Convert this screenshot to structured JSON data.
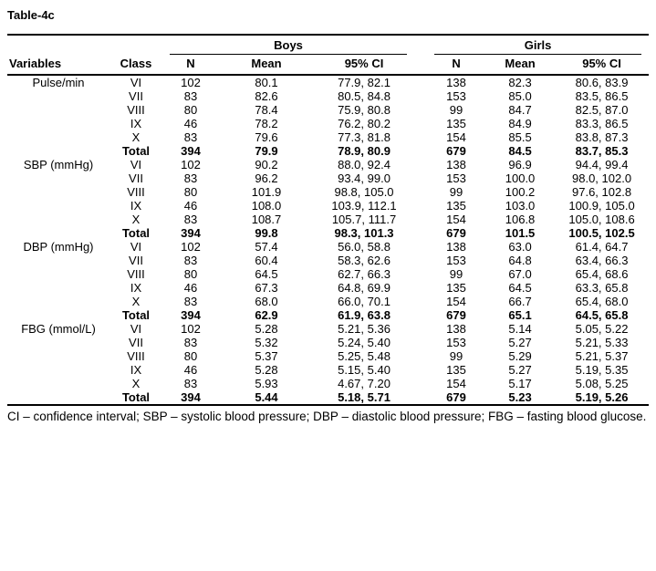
{
  "title": "Table-4c",
  "table": {
    "group_headers": {
      "boys": "Boys",
      "girls": "Girls"
    },
    "col_headers": {
      "variables": "Variables",
      "class": "Class",
      "n": "N",
      "mean": "Mean",
      "ci": "95% CI"
    },
    "sections": [
      {
        "variable": "Pulse/min",
        "rows": [
          {
            "class": "VI",
            "boys": {
              "n": "102",
              "mean": "80.1",
              "ci": "77.9, 82.1"
            },
            "girls": {
              "n": "138",
              "mean": "82.3",
              "ci": "80.6, 83.9"
            }
          },
          {
            "class": "VII",
            "boys": {
              "n": "83",
              "mean": "82.6",
              "ci": "80.5, 84.8"
            },
            "girls": {
              "n": "153",
              "mean": "85.0",
              "ci": "83.5, 86.5"
            }
          },
          {
            "class": "VIII",
            "boys": {
              "n": "80",
              "mean": "78.4",
              "ci": "75.9, 80.8"
            },
            "girls": {
              "n": "99",
              "mean": "84.7",
              "ci": "82.5, 87.0"
            }
          },
          {
            "class": "IX",
            "boys": {
              "n": "46",
              "mean": "78.2",
              "ci": "76.2, 80.2"
            },
            "girls": {
              "n": "135",
              "mean": "84.9",
              "ci": "83.3, 86.5"
            }
          },
          {
            "class": "X",
            "boys": {
              "n": "83",
              "mean": "79.6",
              "ci": "77.3, 81.8"
            },
            "girls": {
              "n": "154",
              "mean": "85.5",
              "ci": "83.8, 87.3"
            }
          },
          {
            "class": "Total",
            "boys": {
              "n": "394",
              "mean": "79.9",
              "ci": "78.9, 80.9"
            },
            "girls": {
              "n": "679",
              "mean": "84.5",
              "ci": "83.7, 85.3"
            }
          }
        ]
      },
      {
        "variable": "SBP (mmHg)",
        "rows": [
          {
            "class": "VI",
            "boys": {
              "n": "102",
              "mean": "90.2",
              "ci": "88.0, 92.4"
            },
            "girls": {
              "n": "138",
              "mean": "96.9",
              "ci": "94.4, 99.4"
            }
          },
          {
            "class": "VII",
            "boys": {
              "n": "83",
              "mean": "96.2",
              "ci": "93.4, 99.0"
            },
            "girls": {
              "n": "153",
              "mean": "100.0",
              "ci": "98.0, 102.0"
            }
          },
          {
            "class": "VIII",
            "boys": {
              "n": "80",
              "mean": "101.9",
              "ci": "98.8, 105.0"
            },
            "girls": {
              "n": "99",
              "mean": "100.2",
              "ci": "97.6, 102.8"
            }
          },
          {
            "class": "IX",
            "boys": {
              "n": "46",
              "mean": "108.0",
              "ci": "103.9, 112.1"
            },
            "girls": {
              "n": "135",
              "mean": "103.0",
              "ci": "100.9, 105.0"
            }
          },
          {
            "class": "X",
            "boys": {
              "n": "83",
              "mean": "108.7",
              "ci": "105.7, 111.7"
            },
            "girls": {
              "n": "154",
              "mean": "106.8",
              "ci": "105.0, 108.6"
            }
          },
          {
            "class": "Total",
            "boys": {
              "n": "394",
              "mean": "99.8",
              "ci": "98.3, 101.3"
            },
            "girls": {
              "n": "679",
              "mean": "101.5",
              "ci": "100.5, 102.5"
            }
          }
        ]
      },
      {
        "variable": "DBP (mmHg)",
        "rows": [
          {
            "class": "VI",
            "boys": {
              "n": "102",
              "mean": "57.4",
              "ci": "56.0, 58.8"
            },
            "girls": {
              "n": "138",
              "mean": "63.0",
              "ci": "61.4, 64.7"
            }
          },
          {
            "class": "VII",
            "boys": {
              "n": "83",
              "mean": "60.4",
              "ci": "58.3, 62.6"
            },
            "girls": {
              "n": "153",
              "mean": "64.8",
              "ci": "63.4, 66.3"
            }
          },
          {
            "class": "VIII",
            "boys": {
              "n": "80",
              "mean": "64.5",
              "ci": "62.7, 66.3"
            },
            "girls": {
              "n": "99",
              "mean": "67.0",
              "ci": "65.4, 68.6"
            }
          },
          {
            "class": "IX",
            "boys": {
              "n": "46",
              "mean": "67.3",
              "ci": "64.8, 69.9"
            },
            "girls": {
              "n": "135",
              "mean": "64.5",
              "ci": "63.3, 65.8"
            }
          },
          {
            "class": "X",
            "boys": {
              "n": "83",
              "mean": "68.0",
              "ci": "66.0, 70.1"
            },
            "girls": {
              "n": "154",
              "mean": "66.7",
              "ci": "65.4, 68.0"
            }
          },
          {
            "class": "Total",
            "boys": {
              "n": "394",
              "mean": "62.9",
              "ci": "61.9, 63.8"
            },
            "girls": {
              "n": "679",
              "mean": "65.1",
              "ci": "64.5, 65.8"
            }
          }
        ]
      },
      {
        "variable": "FBG (mmol/L)",
        "rows": [
          {
            "class": "VI",
            "boys": {
              "n": "102",
              "mean": "5.28",
              "ci": "5.21, 5.36"
            },
            "girls": {
              "n": "138",
              "mean": "5.14",
              "ci": "5.05, 5.22"
            }
          },
          {
            "class": "VII",
            "boys": {
              "n": "83",
              "mean": "5.32",
              "ci": "5.24, 5.40"
            },
            "girls": {
              "n": "153",
              "mean": "5.27",
              "ci": "5.21, 5.33"
            }
          },
          {
            "class": "VIII",
            "boys": {
              "n": "80",
              "mean": "5.37",
              "ci": "5.25, 5.48"
            },
            "girls": {
              "n": "99",
              "mean": "5.29",
              "ci": "5.21, 5.37"
            }
          },
          {
            "class": "IX",
            "boys": {
              "n": "46",
              "mean": "5.28",
              "ci": "5.15, 5.40"
            },
            "girls": {
              "n": "135",
              "mean": "5.27",
              "ci": "5.19, 5.35"
            }
          },
          {
            "class": "X",
            "boys": {
              "n": "83",
              "mean": "5.93",
              "ci": "4.67, 7.20"
            },
            "girls": {
              "n": "154",
              "mean": "5.17",
              "ci": "5.08, 5.25"
            }
          },
          {
            "class": "Total",
            "boys": {
              "n": "394",
              "mean": "5.44",
              "ci": "5.18, 5.71"
            },
            "girls": {
              "n": "679",
              "mean": "5.23",
              "ci": "5.19, 5.26"
            }
          }
        ]
      }
    ],
    "footnote": "CI – confidence interval; SBP – systolic blood pressure; DBP – diastolic blood pressure; FBG – fasting blood glucose."
  }
}
